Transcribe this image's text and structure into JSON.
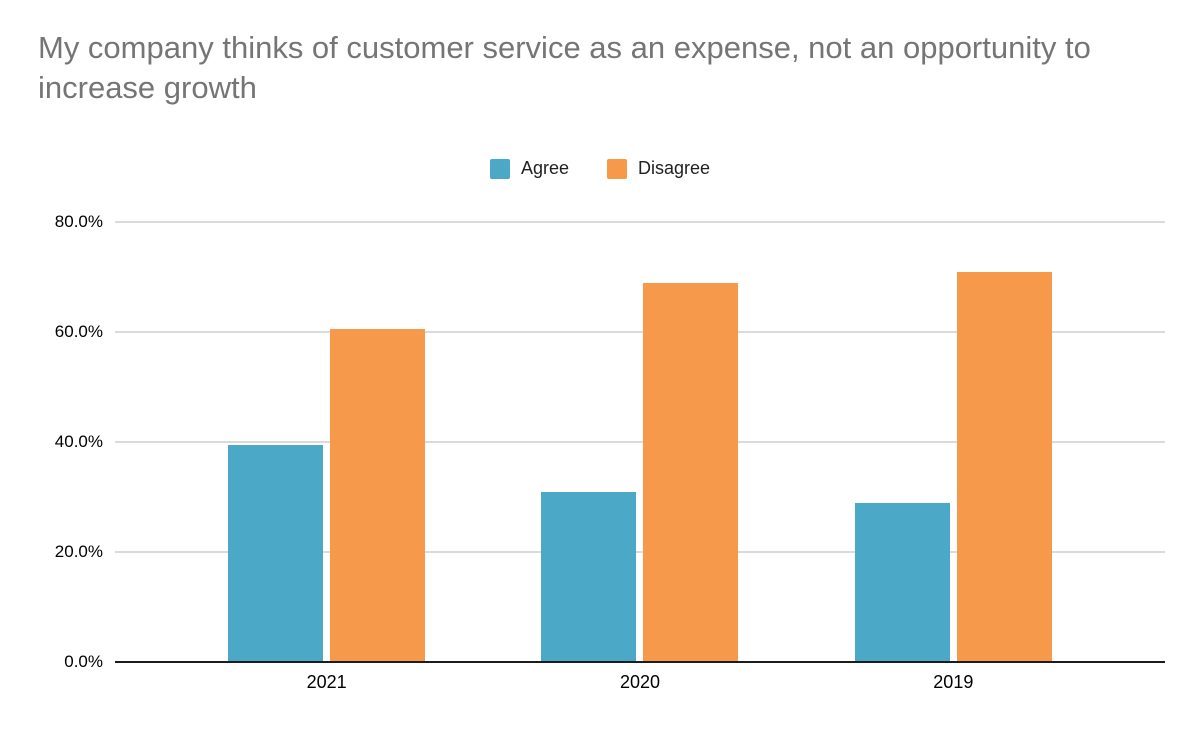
{
  "chart_data": {
    "type": "bar",
    "title": "My company thinks of customer service as an expense, not an opportunity to increase growth",
    "categories": [
      "2021",
      "2020",
      "2019"
    ],
    "series": [
      {
        "name": "Agree",
        "color": "#4BA8C6",
        "values": [
          39.5,
          31.0,
          29.0
        ]
      },
      {
        "name": "Disagree",
        "color": "#F6994B",
        "values": [
          60.5,
          69.0,
          71.0
        ]
      }
    ],
    "xlabel": "",
    "ylabel": "",
    "ylim": [
      0,
      80
    ],
    "yticks": [
      0,
      20,
      40,
      60,
      80
    ],
    "ytick_labels": [
      "0.0%",
      "20.0%",
      "40.0%",
      "60.0%",
      "80.0%"
    ],
    "grid": true,
    "legend_position": "top-center"
  },
  "colors": {
    "background": "#ffffff",
    "title_text": "#757575",
    "axis_text": "#000000",
    "gridline": "#dadada",
    "axis_line": "#1c1c1c"
  }
}
